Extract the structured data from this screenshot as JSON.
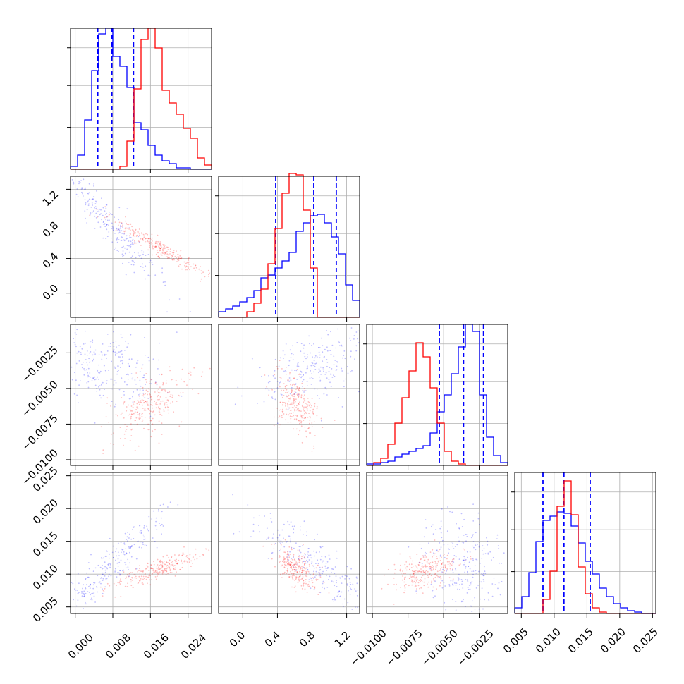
{
  "colors": {
    "blue": "#0000ff",
    "red": "#ff0000",
    "grid": "#b0b0b0"
  },
  "axis_ticks": {
    "p0": [
      "0.000",
      "0.008",
      "0.016",
      "0.024"
    ],
    "p1": [
      "0.0",
      "0.4",
      "0.8",
      "1.2"
    ],
    "p2": [
      "−0.0100",
      "−0.0075",
      "−0.0050",
      "−0.0025"
    ],
    "p3": [
      "0.005",
      "0.010",
      "0.015",
      "0.020",
      "0.025"
    ]
  },
  "chart_data": {
    "type": "corner",
    "grid": true,
    "parameters": [
      {
        "range": [
          -0.001,
          0.029
        ],
        "ticks": [
          0.0,
          0.008,
          0.016,
          0.024
        ]
      },
      {
        "range": [
          -0.28,
          1.35
        ],
        "ticks": [
          0.0,
          0.4,
          0.8,
          1.2
        ]
      },
      {
        "range": [
          -0.0104,
          -0.0005
        ],
        "ticks": [
          -0.01,
          -0.0075,
          -0.005,
          -0.0025
        ]
      },
      {
        "range": [
          0.004,
          0.0255
        ],
        "ticks": [
          0.005,
          0.01,
          0.015,
          0.02,
          0.025
        ]
      }
    ],
    "series": [
      {
        "color": "blue",
        "quantiles": [
          [
            0.0048,
            0.0078,
            0.0124
          ],
          [
            0.38,
            0.82,
            1.08
          ],
          [
            -0.0053,
            -0.0036,
            -0.0022
          ],
          [
            0.0083,
            0.0115,
            0.0155
          ]
        ],
        "histograms": [
          [
            0.02,
            0.1,
            0.35,
            0.7,
            0.96,
            1.0,
            0.8,
            0.73,
            0.58,
            0.33,
            0.28,
            0.17,
            0.1,
            0.06,
            0.04,
            0.01,
            0.01,
            0,
            0,
            0
          ],
          [
            0.04,
            0.06,
            0.08,
            0.11,
            0.14,
            0.19,
            0.28,
            0.3,
            0.35,
            0.4,
            0.46,
            0.61,
            0.67,
            0.72,
            0.73,
            0.67,
            0.57,
            0.45,
            0.23,
            0.12
          ],
          [
            0.01,
            0.01,
            0.02,
            0.03,
            0.06,
            0.08,
            0.1,
            0.12,
            0.14,
            0.23,
            0.38,
            0.5,
            0.65,
            0.84,
            1.0,
            0.95,
            0.5,
            0.2,
            0.07,
            0.02
          ],
          [
            0.04,
            0.12,
            0.29,
            0.51,
            0.66,
            0.69,
            0.72,
            0.71,
            0.62,
            0.5,
            0.37,
            0.28,
            0.18,
            0.12,
            0.07,
            0.04,
            0.02,
            0.01,
            0,
            0
          ]
        ],
        "pairs": [
          {
            "x": 0,
            "y": 1,
            "mean": [
              0.0075,
              0.8
            ],
            "sd": [
              0.0045,
              0.3
            ],
            "rho": -0.95
          },
          {
            "x": 0,
            "y": 2,
            "mean": [
              0.0065,
              -0.0035
            ],
            "sd": [
              0.0045,
              0.0011
            ],
            "rho": -0.3
          },
          {
            "x": 1,
            "y": 2,
            "mean": [
              0.85,
              -0.0035
            ],
            "sd": [
              0.28,
              0.0011
            ],
            "rho": 0.45
          },
          {
            "x": 0,
            "y": 3,
            "mean": [
              0.0075,
              0.0115
            ],
            "sd": [
              0.0045,
              0.0032
            ],
            "rho": 0.92
          },
          {
            "x": 1,
            "y": 3,
            "mean": [
              0.85,
              0.0115
            ],
            "sd": [
              0.3,
              0.0032
            ],
            "rho": -0.88
          },
          {
            "x": 2,
            "y": 3,
            "mean": [
              -0.0036,
              0.0115
            ],
            "sd": [
              0.0011,
              0.0032
            ],
            "rho": -0.2
          }
        ]
      },
      {
        "color": "red",
        "quantiles": [],
        "histograms": [
          [
            0,
            0,
            0,
            0,
            0,
            0,
            0,
            0.02,
            0.2,
            0.57,
            0.92,
            1.0,
            0.86,
            0.56,
            0.47,
            0.39,
            0.29,
            0.22,
            0.08,
            0.03
          ],
          [
            0,
            0,
            0,
            0,
            0.04,
            0.1,
            0.2,
            0.38,
            0.63,
            0.88,
            1.02,
            1.01,
            0.76,
            0.35,
            0,
            0,
            0,
            0,
            0,
            0
          ],
          [
            0,
            0.02,
            0.05,
            0.15,
            0.3,
            0.48,
            0.67,
            0.87,
            0.77,
            0.55,
            0.3,
            0.1,
            0.03,
            0.01,
            0,
            0,
            0,
            0,
            0,
            0
          ],
          [
            0,
            0,
            0,
            0,
            0.1,
            0.3,
            0.76,
            0.94,
            0.7,
            0.33,
            0.14,
            0.04,
            0.01,
            0,
            0,
            0,
            0,
            0,
            0,
            0
          ]
        ],
        "pairs": [
          {
            "x": 0,
            "y": 1,
            "mean": [
              0.017,
              0.55
            ],
            "sd": [
              0.004,
              0.13
            ],
            "rho": -0.95
          },
          {
            "x": 0,
            "y": 2,
            "mean": [
              0.016,
              -0.0062
            ],
            "sd": [
              0.0035,
              0.0009
            ],
            "rho": 0.55
          },
          {
            "x": 1,
            "y": 2,
            "mean": [
              0.62,
              -0.0062
            ],
            "sd": [
              0.1,
              0.0009
            ],
            "rho": -0.45
          },
          {
            "x": 0,
            "y": 3,
            "mean": [
              0.018,
              0.0108
            ],
            "sd": [
              0.004,
              0.0012
            ],
            "rho": 0.85
          },
          {
            "x": 1,
            "y": 3,
            "mean": [
              0.62,
              0.0108
            ],
            "sd": [
              0.1,
              0.0012
            ],
            "rho": -0.5
          },
          {
            "x": 2,
            "y": 3,
            "mean": [
              -0.0062,
              0.0105
            ],
            "sd": [
              0.0009,
              0.0012
            ],
            "rho": 0.45
          }
        ]
      }
    ]
  }
}
